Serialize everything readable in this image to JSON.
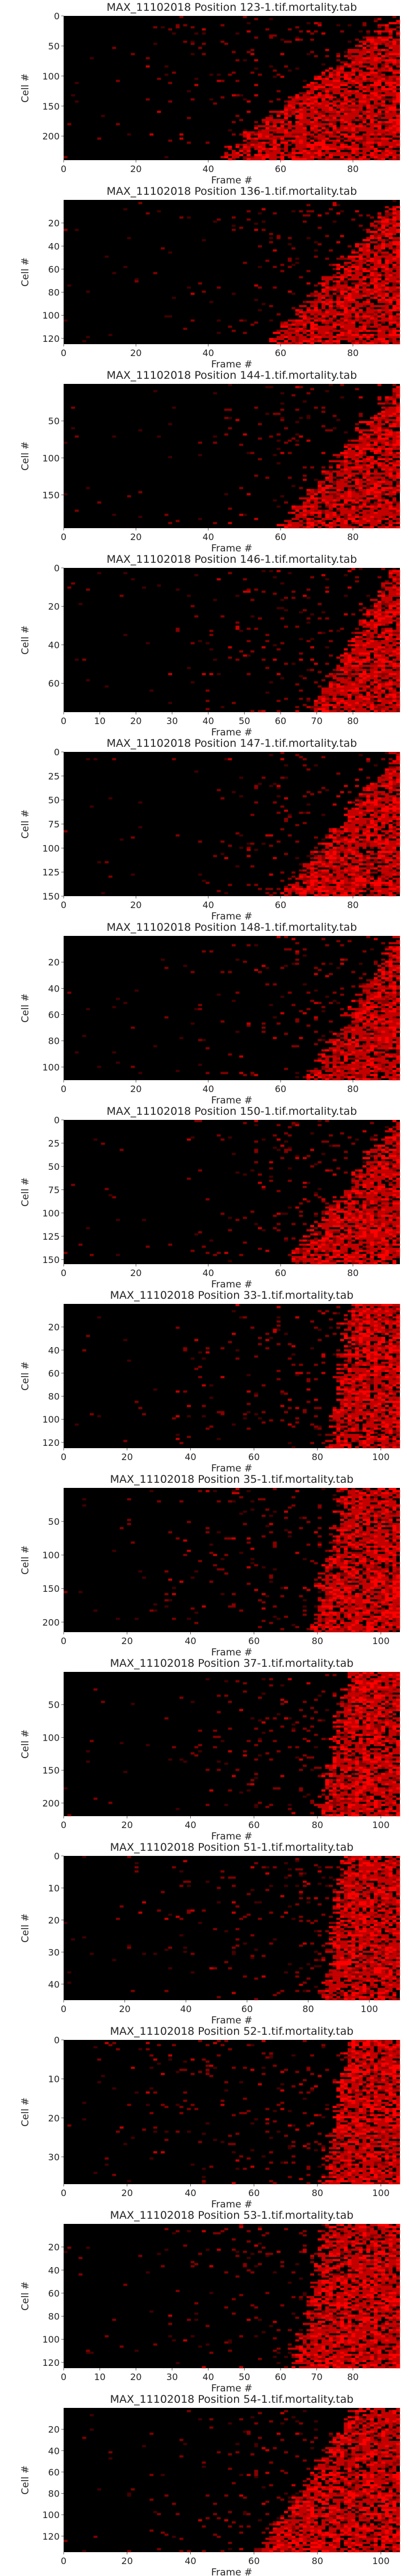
{
  "chart_data": [
    {
      "type": "heatmap",
      "title": "MAX_11102018 Position 123-1.tif.mortality.tab",
      "xlabel": "Frame #",
      "ylabel": "Cell #",
      "frames": 93,
      "cells": 240,
      "xlim": [
        0,
        93
      ],
      "ylim": [
        240,
        0
      ],
      "xticks": [
        0,
        20,
        40,
        60,
        80
      ],
      "yticks": [
        0,
        50,
        100,
        150,
        200
      ],
      "dense_onset_frame": [
        42,
        92
      ],
      "sparse_onset_frame": [
        20,
        58
      ],
      "colormap": [
        "#000000",
        "#FF0000"
      ],
      "grid": false,
      "legend": "none"
    },
    {
      "type": "heatmap",
      "title": "MAX_11102018 Position 136-1.tif.mortality.tab",
      "xlabel": "Frame #",
      "ylabel": "Cell #",
      "frames": 93,
      "cells": 125,
      "xlim": [
        0,
        93
      ],
      "ylim": [
        125,
        0
      ],
      "xticks": [
        0,
        20,
        40,
        60,
        80
      ],
      "yticks": [
        20,
        40,
        60,
        80,
        100,
        120
      ],
      "dense_onset_frame": [
        57,
        92
      ],
      "sparse_onset_frame": [
        30,
        70
      ],
      "colormap": [
        "#000000",
        "#FF0000"
      ],
      "grid": false,
      "legend": "none"
    },
    {
      "type": "heatmap",
      "title": "MAX_11102018 Position 144-1.tif.mortality.tab",
      "xlabel": "Frame #",
      "ylabel": "Cell #",
      "frames": 93,
      "cells": 195,
      "xlim": [
        0,
        93
      ],
      "ylim": [
        195,
        0
      ],
      "xticks": [
        0,
        20,
        40,
        60,
        80
      ],
      "yticks": [
        50,
        100,
        150
      ],
      "dense_onset_frame": [
        60,
        92
      ],
      "sparse_onset_frame": [
        35,
        70
      ],
      "colormap": [
        "#000000",
        "#FF0000"
      ],
      "grid": false,
      "legend": "none"
    },
    {
      "type": "heatmap",
      "title": "MAX_11102018 Position 146-1.tif.mortality.tab",
      "xlabel": "Frame #",
      "ylabel": "Cell #",
      "frames": 93,
      "cells": 75,
      "xlim": [
        0,
        93
      ],
      "ylim": [
        75,
        0
      ],
      "xticks": [
        0,
        10,
        20,
        30,
        40,
        50,
        60,
        70,
        80
      ],
      "yticks": [
        0,
        20,
        40,
        60
      ],
      "dense_onset_frame": [
        68,
        92
      ],
      "sparse_onset_frame": [
        25,
        70
      ],
      "colormap": [
        "#000000",
        "#FF0000"
      ],
      "grid": false,
      "legend": "none"
    },
    {
      "type": "heatmap",
      "title": "MAX_11102018 Position 147-1.tif.mortality.tab",
      "xlabel": "Frame #",
      "ylabel": "Cell #",
      "frames": 93,
      "cells": 150,
      "xlim": [
        0,
        93
      ],
      "ylim": [
        150,
        0
      ],
      "xticks": [
        0,
        20,
        40,
        60,
        80
      ],
      "yticks": [
        0,
        25,
        50,
        75,
        100,
        125,
        150
      ],
      "dense_onset_frame": [
        60,
        92
      ],
      "sparse_onset_frame": [
        30,
        70
      ],
      "colormap": [
        "#000000",
        "#FF0000"
      ],
      "grid": false,
      "legend": "none"
    },
    {
      "type": "heatmap",
      "title": "MAX_11102018 Position 148-1.tif.mortality.tab",
      "xlabel": "Frame #",
      "ylabel": "Cell #",
      "frames": 93,
      "cells": 110,
      "xlim": [
        0,
        93
      ],
      "ylim": [
        110,
        0
      ],
      "xticks": [
        0,
        20,
        40,
        60,
        80
      ],
      "yticks": [
        20,
        40,
        60,
        80,
        100
      ],
      "dense_onset_frame": [
        68,
        92
      ],
      "sparse_onset_frame": [
        30,
        70
      ],
      "colormap": [
        "#000000",
        "#FF0000"
      ],
      "grid": false,
      "legend": "none"
    },
    {
      "type": "heatmap",
      "title": "MAX_11102018 Position 150-1.tif.mortality.tab",
      "xlabel": "Frame #",
      "ylabel": "Cell #",
      "frames": 93,
      "cells": 155,
      "xlim": [
        0,
        93
      ],
      "ylim": [
        155,
        0
      ],
      "xticks": [
        0,
        20,
        40,
        60,
        80
      ],
      "yticks": [
        0,
        25,
        50,
        75,
        100,
        125,
        150
      ],
      "dense_onset_frame": [
        62,
        92
      ],
      "sparse_onset_frame": [
        25,
        70
      ],
      "colormap": [
        "#000000",
        "#FF0000"
      ],
      "grid": false,
      "legend": "none"
    },
    {
      "type": "heatmap",
      "title": "MAX_11102018 Position 33-1.tif.mortality.tab",
      "xlabel": "Frame #",
      "ylabel": "Cell #",
      "frames": 106,
      "cells": 125,
      "xlim": [
        0,
        106
      ],
      "ylim": [
        125,
        0
      ],
      "xticks": [
        0,
        20,
        40,
        60,
        80,
        100
      ],
      "yticks": [
        20,
        40,
        60,
        80,
        100,
        120
      ],
      "dense_onset_frame": [
        84,
        90
      ],
      "sparse_onset_frame": [
        30,
        80
      ],
      "colormap": [
        "#000000",
        "#FF0000"
      ],
      "grid": false,
      "legend": "none"
    },
    {
      "type": "heatmap",
      "title": "MAX_11102018 Position 35-1.tif.mortality.tab",
      "xlabel": "Frame #",
      "ylabel": "Cell #",
      "frames": 106,
      "cells": 215,
      "xlim": [
        0,
        106
      ],
      "ylim": [
        215,
        0
      ],
      "xticks": [
        0,
        20,
        40,
        60,
        80,
        100
      ],
      "yticks": [
        50,
        100,
        150,
        200
      ],
      "dense_onset_frame": [
        78,
        88
      ],
      "sparse_onset_frame": [
        20,
        60
      ],
      "colormap": [
        "#000000",
        "#FF0000"
      ],
      "grid": false,
      "legend": "none"
    },
    {
      "type": "heatmap",
      "title": "MAX_11102018 Position 37-1.tif.mortality.tab",
      "xlabel": "Frame #",
      "ylabel": "Cell #",
      "frames": 106,
      "cells": 220,
      "xlim": [
        0,
        106
      ],
      "ylim": [
        220,
        0
      ],
      "xticks": [
        0,
        20,
        40,
        60,
        80,
        100
      ],
      "yticks": [
        50,
        100,
        150,
        200
      ],
      "dense_onset_frame": [
        80,
        90
      ],
      "sparse_onset_frame": [
        35,
        75
      ],
      "colormap": [
        "#000000",
        "#FF0000"
      ],
      "grid": false,
      "legend": "none"
    },
    {
      "type": "heatmap",
      "title": "MAX_11102018 Position 51-1.tif.mortality.tab",
      "xlabel": "Frame #",
      "ylabel": "Cell #",
      "frames": 110,
      "cells": 45,
      "xlim": [
        0,
        110
      ],
      "ylim": [
        45,
        0
      ],
      "xticks": [
        0,
        20,
        40,
        60,
        80,
        100
      ],
      "yticks": [
        0,
        10,
        20,
        30,
        40
      ],
      "dense_onset_frame": [
        85,
        92
      ],
      "sparse_onset_frame": [
        10,
        80
      ],
      "colormap": [
        "#000000",
        "#FF0000"
      ],
      "grid": false,
      "legend": "none"
    },
    {
      "type": "heatmap",
      "title": "MAX_11102018 Position 52-1.tif.mortality.tab",
      "xlabel": "Frame #",
      "ylabel": "Cell #",
      "frames": 106,
      "cells": 37,
      "xlim": [
        0,
        106
      ],
      "ylim": [
        37,
        0
      ],
      "xticks": [
        0,
        20,
        40,
        60,
        80,
        100
      ],
      "yticks": [
        0,
        10,
        20,
        30
      ],
      "dense_onset_frame": [
        82,
        90
      ],
      "sparse_onset_frame": [
        10,
        80
      ],
      "colormap": [
        "#000000",
        "#FF0000"
      ],
      "grid": false,
      "legend": "none"
    },
    {
      "type": "heatmap",
      "title": "MAX_11102018 Position 53-1.tif.mortality.tab",
      "xlabel": "Frame #",
      "ylabel": "Cell #",
      "frames": 93,
      "cells": 125,
      "xlim": [
        0,
        93
      ],
      "ylim": [
        125,
        0
      ],
      "xticks": [
        0,
        10,
        20,
        30,
        40,
        50,
        60,
        70,
        80
      ],
      "yticks": [
        20,
        40,
        60,
        80,
        100,
        120
      ],
      "dense_onset_frame": [
        64,
        72
      ],
      "sparse_onset_frame": [
        20,
        60
      ],
      "colormap": [
        "#000000",
        "#FF0000"
      ],
      "grid": false,
      "legend": "none"
    },
    {
      "type": "heatmap",
      "title": "MAX_11102018 Position 54-1.tif.mortality.tab",
      "xlabel": "Frame #",
      "ylabel": "Cell #",
      "frames": 106,
      "cells": 135,
      "xlim": [
        0,
        106
      ],
      "ylim": [
        135,
        0
      ],
      "xticks": [
        0,
        20,
        40,
        60,
        80,
        100
      ],
      "yticks": [
        20,
        40,
        60,
        80,
        100,
        120
      ],
      "dense_onset_frame": [
        62,
        92
      ],
      "sparse_onset_frame": [
        25,
        70
      ],
      "colormap": [
        "#000000",
        "#FF0000"
      ],
      "grid": false,
      "legend": "none"
    }
  ]
}
